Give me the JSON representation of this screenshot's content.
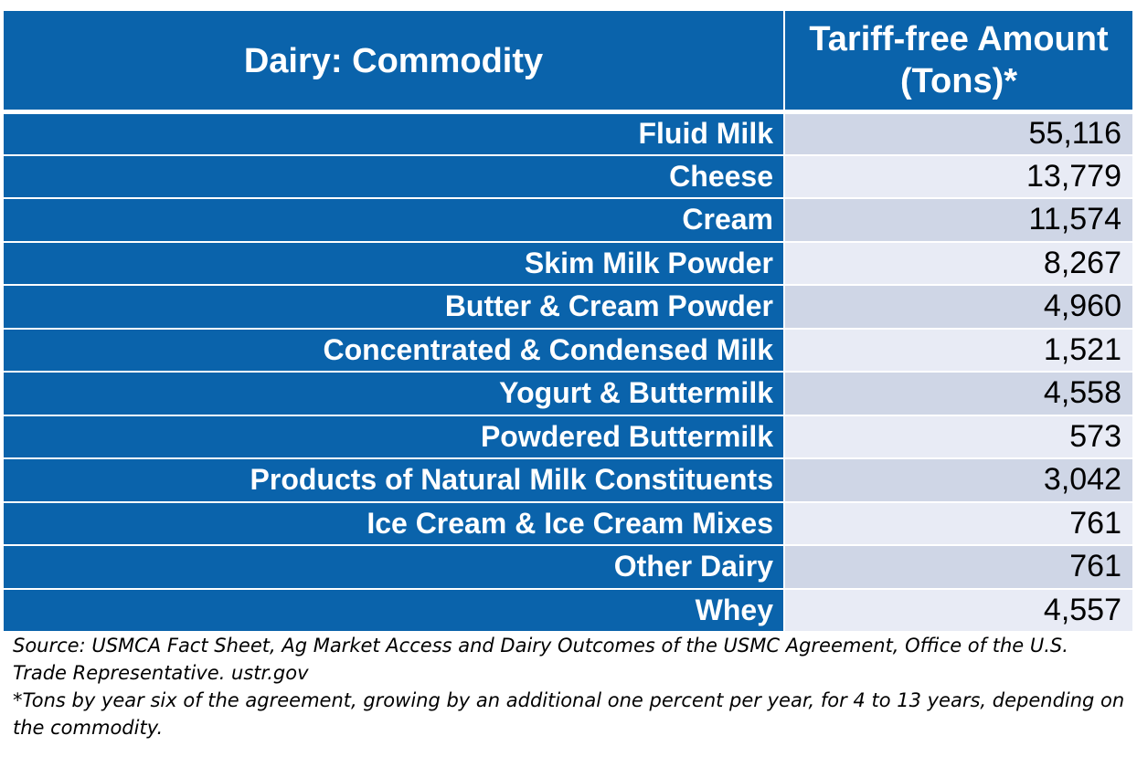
{
  "table": {
    "header": {
      "commodity": "Dairy: Commodity",
      "amount_line1": "Tariff-free Amount",
      "amount_line2": "(Tons)*"
    },
    "rows": [
      {
        "commodity": "Fluid Milk",
        "amount": "55,116"
      },
      {
        "commodity": "Cheese",
        "amount": "13,779"
      },
      {
        "commodity": "Cream",
        "amount": "11,574"
      },
      {
        "commodity": "Skim Milk Powder",
        "amount": "8,267"
      },
      {
        "commodity": "Butter & Cream Powder",
        "amount": "4,960"
      },
      {
        "commodity": "Concentrated & Condensed Milk",
        "amount": "1,521"
      },
      {
        "commodity": "Yogurt & Buttermilk",
        "amount": "4,558"
      },
      {
        "commodity": "Powdered Buttermilk",
        "amount": "573"
      },
      {
        "commodity": "Products of Natural Milk Constituents",
        "amount": "3,042"
      },
      {
        "commodity": "Ice Cream & Ice Cream Mixes",
        "amount": "761"
      },
      {
        "commodity": "Other Dairy",
        "amount": "761"
      },
      {
        "commodity": "Whey",
        "amount": "4,557"
      }
    ]
  },
  "notes": {
    "source": "Source: USMCA Fact Sheet, Ag Market Access and Dairy Outcomes of the USMC Agreement, Office of the U.S. Trade Representative. ustr.gov",
    "footnote": "*Tons by year six of the agreement, growing by an additional one percent per year, for 4 to 13 years, depending on the commodity."
  },
  "colors": {
    "header_blue": "#0a63ab",
    "value_band_dark": "#cfd6e6",
    "value_band_light": "#e8ebf5"
  }
}
